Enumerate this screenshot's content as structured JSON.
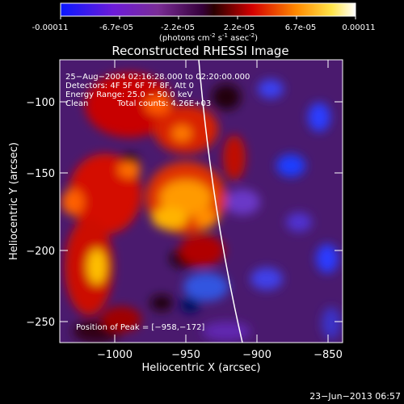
{
  "colorbar": {
    "ticks": [
      "-0.00011",
      "-6.7e-05",
      "-2.2e-05",
      "2.2e-05",
      "6.7e-05",
      "0.00011"
    ],
    "unit_prefix": "(photons cm",
    "unit_sup1": "-2",
    "unit_mid": " s",
    "unit_sup2": "-1",
    "unit_end": " asec",
    "unit_sup3": "-2",
    "unit_close": ")"
  },
  "plot": {
    "title": "Reconstructed RHESSI Image",
    "xlabel": "Heliocentric X (arcsec)",
    "ylabel": "Heliocentric Y (arcsec)",
    "xticks": [
      "−1000",
      "−950",
      "−900",
      "−850"
    ],
    "yticks": [
      "−100",
      "−150",
      "−200",
      "−250"
    ],
    "x_range": [
      -1035,
      -838
    ],
    "y_range": [
      -265,
      -72
    ]
  },
  "info": {
    "time": "25−Aug−2004 02:16:28.000 to 02:20:00.000",
    "detectors": "Detectors: 4F 5F 6F 7F 8F, Att 0",
    "energy": "Energy Range: 25.0 − 50.0 keV",
    "method": "Clean",
    "counts": "Total counts: 4.26E+03",
    "peak": "Position of Peak = [−958,−172]"
  },
  "footer": {
    "timestamp": "23−Jun−2013 06:57"
  },
  "colors": {
    "background": "#000000",
    "limb": "#ffffff"
  }
}
